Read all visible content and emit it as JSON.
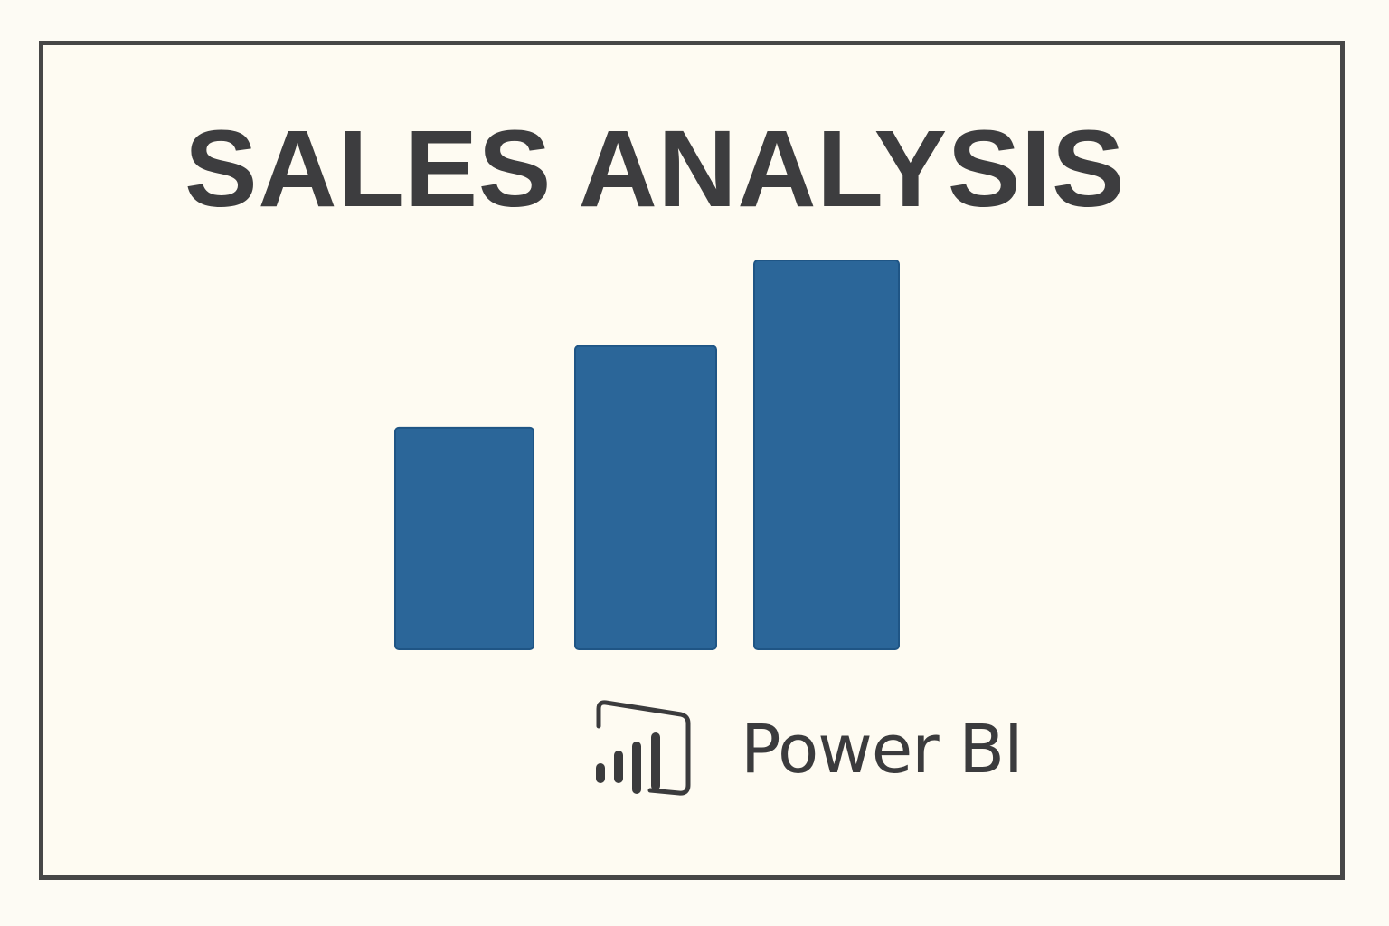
{
  "title": "SALES ANALYSIS",
  "brand": {
    "name": "Power BI",
    "icon": "power-bi-logo-icon"
  },
  "colors": {
    "bar": "#2b6699",
    "bar_border": "#1f5585",
    "text": "#3d3d3f",
    "frame": "#474747",
    "background": "#fefbf2"
  },
  "chart_data": {
    "type": "bar",
    "title": "SALES ANALYSIS",
    "xlabel": "",
    "ylabel": "",
    "series": [
      {
        "values": [
          57,
          78,
          100
        ]
      }
    ],
    "ylim": [
      0,
      100
    ],
    "grid": false
  }
}
